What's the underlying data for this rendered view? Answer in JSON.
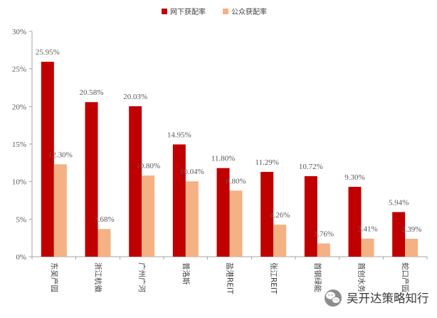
{
  "chart_data": {
    "type": "bar",
    "categories": [
      "东吴产园",
      "浙江杭徽",
      "广州广河",
      "普洛斯",
      "盐港REIT",
      "张江REIT",
      "首钢绿能",
      "首创水务",
      "蛇口产园"
    ],
    "series": [
      {
        "name": "网下获配率",
        "color": "#C00000",
        "values": [
          25.95,
          20.58,
          20.03,
          14.95,
          11.8,
          11.29,
          10.72,
          9.3,
          5.94
        ],
        "labels": [
          "25.95%",
          "20.58%",
          "20.03%",
          "14.95%",
          "11.80%",
          "11.29%",
          "10.72%",
          "9.30%",
          "5.94%"
        ]
      },
      {
        "name": "公众获配率",
        "color": "#F4B183",
        "values": [
          12.3,
          3.68,
          10.8,
          10.04,
          8.8,
          4.26,
          1.76,
          2.41,
          2.39
        ],
        "labels": [
          "12.30%",
          "3.68%",
          "10.80%",
          "10.04%",
          "8.80%",
          "4.26%",
          "1.76%",
          "2.41%",
          "2.39%"
        ]
      }
    ],
    "ylim": [
      0,
      30
    ],
    "yticks": [
      0,
      5,
      10,
      15,
      20,
      25,
      30
    ],
    "ytick_labels": [
      "0%",
      "5%",
      "10%",
      "15%",
      "20%",
      "25%",
      "30%"
    ],
    "grid": false,
    "legend_position": "top-center"
  },
  "watermark": {
    "text": "吴开达策略知行",
    "icon": "wechat-icon",
    "icon_color": "#8C8C8C"
  }
}
